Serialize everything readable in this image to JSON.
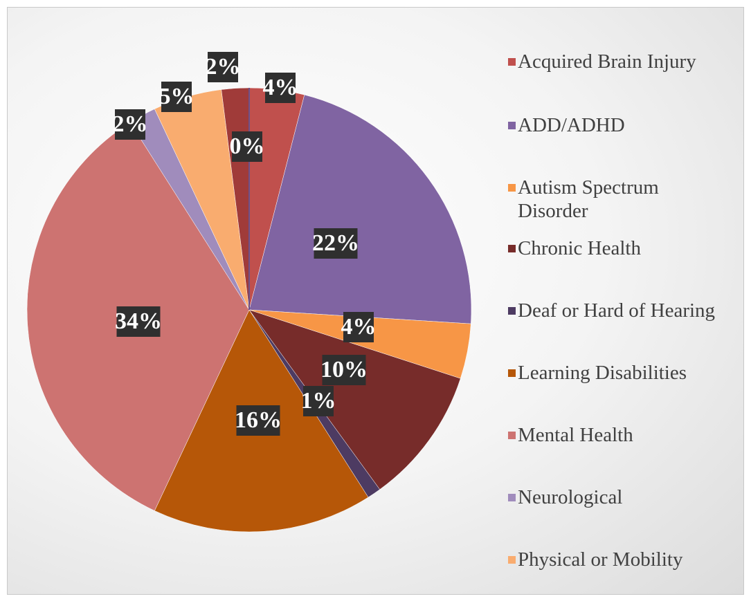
{
  "chart_data": {
    "type": "pie",
    "categories": [
      "Acquired Brain Injury",
      "ADD/ADHD",
      "Autism Spectrum Disorder",
      "Chronic Health",
      "Deaf or Hard of Hearing",
      "Learning Disabilities",
      "Mental Health",
      "Neurological",
      "Physical or Mobility",
      null,
      null
    ],
    "values": [
      4,
      22,
      4,
      10,
      1,
      16,
      34,
      2,
      5,
      2,
      0
    ],
    "value_labels": [
      "4%",
      "22%",
      "4%",
      "10%",
      "1%",
      "16%",
      "34%",
      "2%",
      "5%",
      "2%",
      "0%"
    ],
    "colors": [
      "#c0504d",
      "#8064a2",
      "#f79646",
      "#772c2a",
      "#4d3b62",
      "#b65708",
      "#cd7371",
      "#a08cbc",
      "#f9ac6f",
      "#a03b39",
      "#6b518a"
    ],
    "legend": "right"
  }
}
